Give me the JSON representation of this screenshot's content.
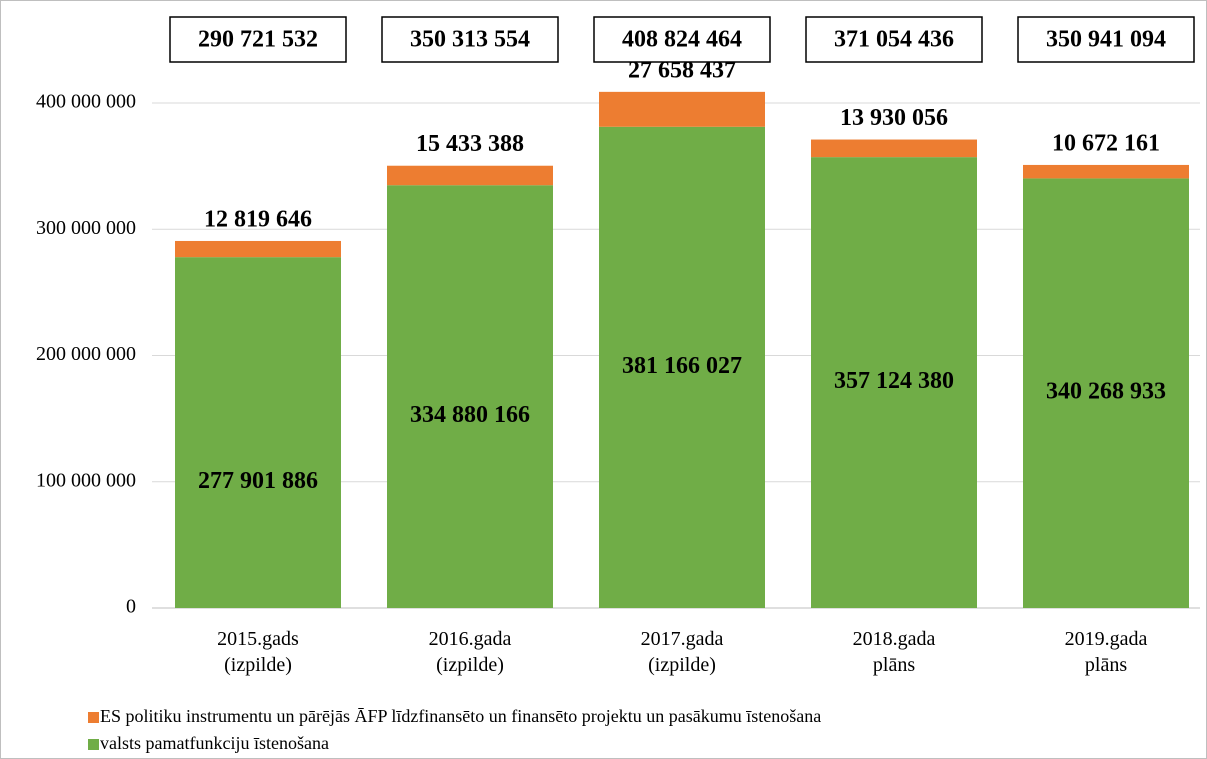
{
  "chart_data": {
    "type": "stacked_bar",
    "categories": [
      "2015.gads (izpilde)",
      "2016.gada (izpilde)",
      "2017.gada (izpilde)",
      "2018.gada plāns",
      "2019.gada plāns"
    ],
    "series": [
      {
        "name": "valsts pamatfunkciju īstenošana",
        "color": "#70ad47",
        "values": [
          277901886,
          334880166,
          381166027,
          357124380,
          340268933
        ],
        "value_labels": [
          "277 901 886",
          "334 880 166",
          "381 166 027",
          "357 124 380",
          "340 268 933"
        ]
      },
      {
        "name": "ES politiku instrumentu un pārējās ĀFP līdzfinansēto un finansēto projektu un pasākumu īstenošana",
        "color": "#ed7d31",
        "values": [
          12819646,
          15433388,
          27658437,
          13930056,
          10672161
        ],
        "value_labels": [
          "12 819 646",
          "15 433 388",
          "27 658 437",
          "13 930 056",
          "10 672 161"
        ]
      }
    ],
    "totals": {
      "values": [
        290721532,
        350313554,
        408824464,
        371054436,
        350941094
      ],
      "value_labels": [
        "290 721 532",
        "350 313 554",
        "408 824 464",
        "371 054 436",
        "350 941 094"
      ]
    },
    "ylim": [
      0,
      400000000
    ],
    "yticks": [
      0,
      {
        "value": 100000000,
        "label": "100 000 000"
      },
      {
        "value": 200000000,
        "label": "200 000 000"
      },
      {
        "value": 300000000,
        "label": "300 000 000"
      },
      {
        "value": 400000000,
        "label": "400 000 000"
      }
    ],
    "grid": true,
    "legend": "bottom-left"
  }
}
